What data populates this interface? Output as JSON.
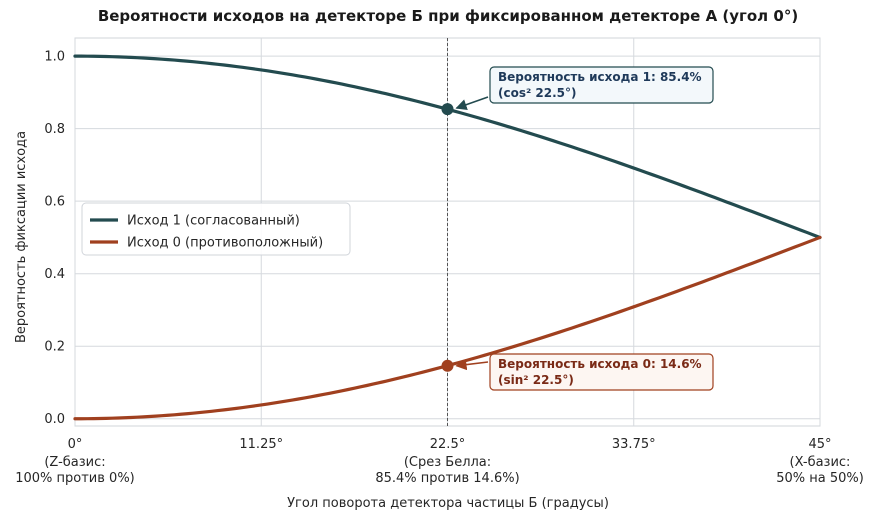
{
  "chart_data": {
    "type": "line",
    "title": "Вероятности исходов на детекторе Б при фиксированном детекторе А (угол 0°)",
    "xlabel": "Угол поворота детектора частицы Б (градусы)",
    "ylabel": "Вероятность фиксации исхода",
    "xlim": [
      0,
      45
    ],
    "ylim": [
      -0.02,
      1.05
    ],
    "grid": true,
    "legend_position": "center-left",
    "x_ticks": [
      {
        "value": 0,
        "label": "0°",
        "sublabel_1": "(Z-базис:",
        "sublabel_2": "100% против 0%)"
      },
      {
        "value": 11.25,
        "label": "11.25°",
        "sublabel_1": "",
        "sublabel_2": ""
      },
      {
        "value": 22.5,
        "label": "22.5°",
        "sublabel_1": "(Срез Белла:",
        "sublabel_2": "85.4% против 14.6%)"
      },
      {
        "value": 33.75,
        "label": "33.75°",
        "sublabel_1": "",
        "sublabel_2": ""
      },
      {
        "value": 45,
        "label": "45°",
        "sublabel_1": "(X-базис:",
        "sublabel_2": "50% на 50%)"
      }
    ],
    "y_ticks": [
      {
        "value": 0.0,
        "label": "0.0"
      },
      {
        "value": 0.2,
        "label": "0.2"
      },
      {
        "value": 0.4,
        "label": "0.4"
      },
      {
        "value": 0.6,
        "label": "0.6"
      },
      {
        "value": 0.8,
        "label": "0.8"
      },
      {
        "value": 1.0,
        "label": "1.0"
      }
    ],
    "series": [
      {
        "name": "Исход 1 (согласованный)",
        "function": "cos^2",
        "color": "#234b4f",
        "x": [
          0,
          5,
          10,
          15,
          20,
          22.5,
          25,
          30,
          35,
          40,
          45
        ],
        "y": [
          1.0,
          0.9924,
          0.9698,
          0.933,
          0.883,
          0.854,
          0.8214,
          0.75,
          0.671,
          0.5868,
          0.5
        ]
      },
      {
        "name": "Исход 0 (противоположный)",
        "function": "sin^2",
        "color": "#a0401f",
        "x": [
          0,
          5,
          10,
          15,
          20,
          22.5,
          25,
          30,
          35,
          40,
          45
        ],
        "y": [
          0.0,
          0.0076,
          0.0302,
          0.067,
          0.117,
          0.146,
          0.1786,
          0.25,
          0.329,
          0.4132,
          0.5
        ]
      }
    ],
    "vline": {
      "x": 22.5,
      "color": "#555555"
    },
    "annotations": [
      {
        "line1": "Вероятность исхода 1: 85.4%",
        "line2": "(cos² 22.5°)",
        "x": 22.5,
        "y": 0.854,
        "text_color": "#1f3a5a",
        "border_color": "#234b4f",
        "bg_color": "#f3f8fb",
        "arrow_color": "#234b4f"
      },
      {
        "line1": "Вероятность исхода 0: 14.6%",
        "line2": "(sin² 22.5°)",
        "x": 22.5,
        "y": 0.146,
        "text_color": "#7a2a16",
        "border_color": "#a0401f",
        "bg_color": "#fdf6f2",
        "arrow_color": "#a0401f"
      }
    ]
  }
}
